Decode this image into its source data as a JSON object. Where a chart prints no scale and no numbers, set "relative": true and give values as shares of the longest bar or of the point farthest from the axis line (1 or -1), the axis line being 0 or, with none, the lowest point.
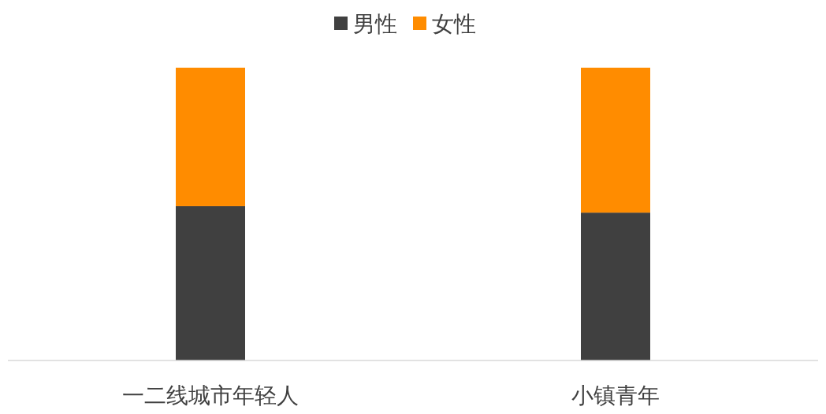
{
  "chart_data": {
    "type": "bar",
    "stacked": true,
    "relative": true,
    "legend": "top",
    "categories": [
      "一二线城市年轻人",
      "小镇青年"
    ],
    "series": [
      {
        "name": "男性",
        "color": "#404040",
        "values": [
          0.527,
          0.505
        ]
      },
      {
        "name": "女性",
        "color": "#ff8c00",
        "values": [
          0.473,
          0.495
        ]
      }
    ]
  }
}
